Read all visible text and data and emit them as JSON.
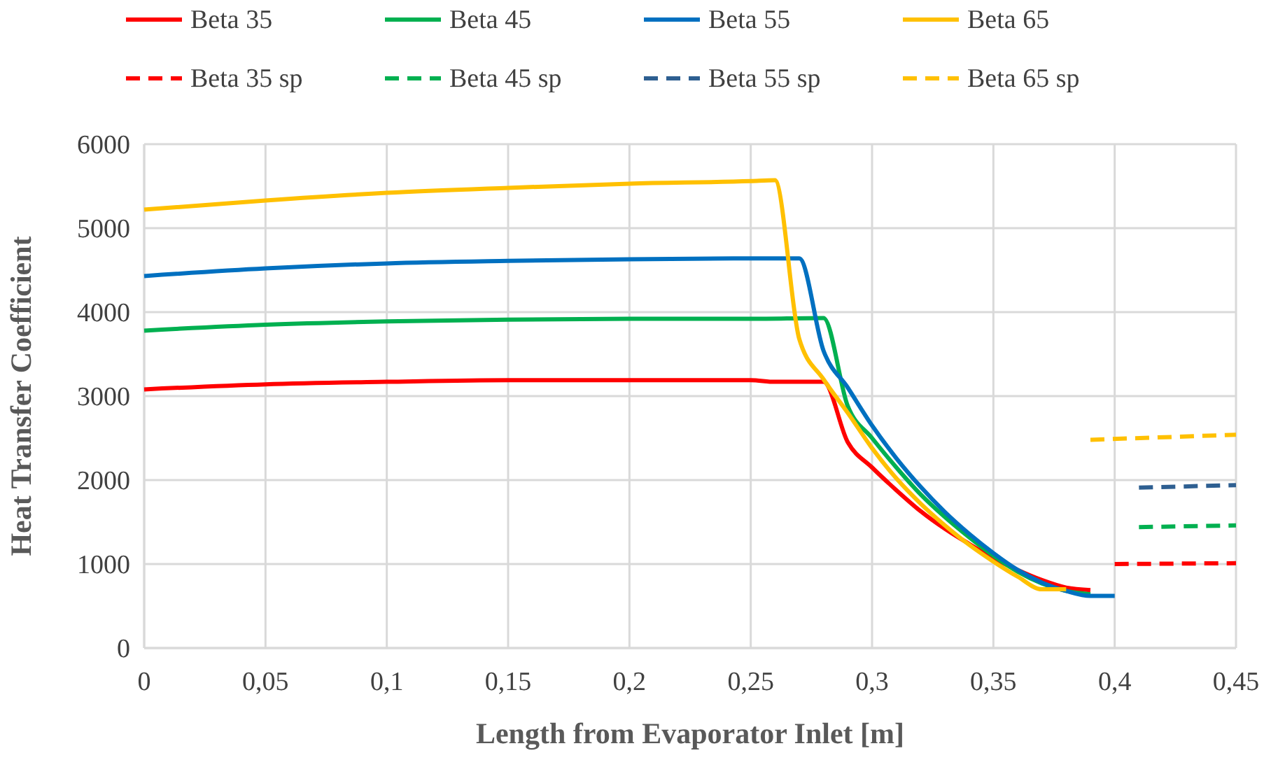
{
  "chart_data": {
    "type": "line",
    "xlabel": "Length from Evaporator Inlet [m]",
    "ylabel": "Heat Transfer Coefficient",
    "xlim": [
      0,
      0.45
    ],
    "ylim": [
      0,
      6000
    ],
    "xticks": [
      {
        "value": 0,
        "label": "0"
      },
      {
        "value": 0.05,
        "label": "0,05"
      },
      {
        "value": 0.1,
        "label": "0,1"
      },
      {
        "value": 0.15,
        "label": "0,15"
      },
      {
        "value": 0.2,
        "label": "0,2"
      },
      {
        "value": 0.25,
        "label": "0,25"
      },
      {
        "value": 0.3,
        "label": "0,3"
      },
      {
        "value": 0.35,
        "label": "0,35"
      },
      {
        "value": 0.4,
        "label": "0,4"
      },
      {
        "value": 0.45,
        "label": "0,45"
      }
    ],
    "yticks": [
      0,
      1000,
      2000,
      3000,
      4000,
      5000,
      6000
    ],
    "grid": true,
    "legend": "top",
    "marker": "none",
    "series": [
      {
        "name": "Beta 35",
        "color": "#ff0000",
        "line_style": "solid",
        "x": [
          0,
          0.05,
          0.1,
          0.15,
          0.2,
          0.25,
          0.26,
          0.28,
          0.29,
          0.3,
          0.31,
          0.32,
          0.33,
          0.34,
          0.35,
          0.36,
          0.37,
          0.38,
          0.39
        ],
        "values": [
          3080,
          3140,
          3170,
          3190,
          3190,
          3190,
          3170,
          3170,
          2450,
          2150,
          1880,
          1630,
          1420,
          1240,
          1070,
          930,
          810,
          720,
          690
        ]
      },
      {
        "name": "Beta 45",
        "color": "#00b050",
        "line_style": "solid",
        "x": [
          0,
          0.05,
          0.1,
          0.15,
          0.2,
          0.25,
          0.28,
          0.29,
          0.3,
          0.31,
          0.32,
          0.33,
          0.34,
          0.35,
          0.36,
          0.37,
          0.38,
          0.39
        ],
        "values": [
          3780,
          3850,
          3890,
          3910,
          3920,
          3920,
          3930,
          2880,
          2500,
          2150,
          1830,
          1560,
          1320,
          1100,
          910,
          770,
          680,
          640
        ]
      },
      {
        "name": "Beta 55",
        "color": "#0070c0",
        "line_style": "solid",
        "x": [
          0,
          0.05,
          0.1,
          0.15,
          0.2,
          0.25,
          0.27,
          0.28,
          0.29,
          0.3,
          0.31,
          0.32,
          0.33,
          0.34,
          0.35,
          0.36,
          0.37,
          0.38,
          0.39,
          0.4
        ],
        "values": [
          4430,
          4520,
          4580,
          4610,
          4630,
          4640,
          4640,
          3540,
          3100,
          2650,
          2260,
          1920,
          1620,
          1360,
          1130,
          930,
          780,
          680,
          620,
          620
        ]
      },
      {
        "name": "Beta 65",
        "color": "#ffc000",
        "line_style": "solid",
        "x": [
          0,
          0.05,
          0.1,
          0.15,
          0.2,
          0.25,
          0.26,
          0.27,
          0.28,
          0.29,
          0.3,
          0.31,
          0.32,
          0.33,
          0.34,
          0.35,
          0.36,
          0.37,
          0.38
        ],
        "values": [
          5220,
          5330,
          5420,
          5480,
          5530,
          5560,
          5570,
          3680,
          3200,
          2800,
          2380,
          2020,
          1720,
          1460,
          1230,
          1030,
          850,
          700,
          700
        ]
      },
      {
        "name": "Beta 35 sp",
        "color": "#ff0000",
        "line_style": "dashed",
        "x": [
          0.4,
          0.45
        ],
        "values": [
          1000,
          1010
        ]
      },
      {
        "name": "Beta 45 sp",
        "color": "#00b050",
        "line_style": "dashed",
        "x": [
          0.41,
          0.45
        ],
        "values": [
          1440,
          1460
        ]
      },
      {
        "name": "Beta 55 sp",
        "color": "#2e5f91",
        "line_style": "dashed",
        "x": [
          0.41,
          0.45
        ],
        "values": [
          1910,
          1940
        ]
      },
      {
        "name": "Beta 65 sp",
        "color": "#ffc000",
        "line_style": "dashed",
        "x": [
          0.39,
          0.45
        ],
        "values": [
          2480,
          2540
        ]
      }
    ]
  }
}
